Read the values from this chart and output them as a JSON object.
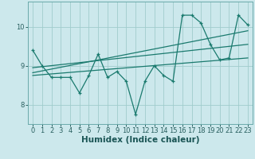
{
  "xlabel": "Humidex (Indice chaleur)",
  "bg_color": "#cce8ec",
  "line_color": "#1a7a6e",
  "grid_color": "#a0cccc",
  "x_data": [
    0,
    1,
    2,
    3,
    4,
    5,
    6,
    7,
    8,
    9,
    10,
    11,
    12,
    13,
    14,
    15,
    16,
    17,
    18,
    19,
    20,
    21,
    22,
    23
  ],
  "y_data": [
    9.4,
    9.0,
    8.7,
    8.7,
    8.7,
    8.3,
    8.75,
    9.3,
    8.7,
    8.85,
    8.6,
    7.75,
    8.6,
    9.0,
    8.75,
    8.6,
    10.3,
    10.3,
    10.1,
    9.55,
    9.15,
    9.2,
    10.3,
    10.05
  ],
  "trend1_x": [
    0,
    23
  ],
  "trend1_y": [
    8.82,
    9.9
  ],
  "trend2_x": [
    0,
    23
  ],
  "trend2_y": [
    8.95,
    9.55
  ],
  "trend3_x": [
    0,
    23
  ],
  "trend3_y": [
    8.75,
    9.2
  ],
  "ylim": [
    7.5,
    10.65
  ],
  "xlim": [
    -0.5,
    23.5
  ],
  "yticks": [
    8,
    9,
    10
  ],
  "xticks": [
    0,
    1,
    2,
    3,
    4,
    5,
    6,
    7,
    8,
    9,
    10,
    11,
    12,
    13,
    14,
    15,
    16,
    17,
    18,
    19,
    20,
    21,
    22,
    23
  ],
  "tick_fontsize": 6,
  "label_fontsize": 7.5
}
